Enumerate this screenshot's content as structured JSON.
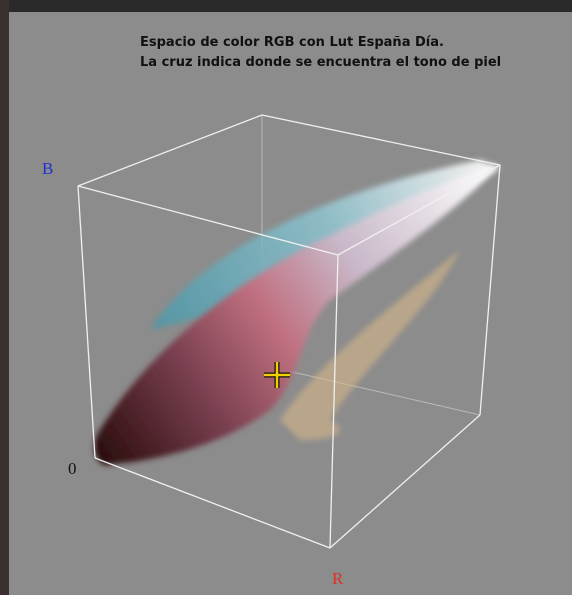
{
  "header": {
    "lines": [
      "Espacio de color RGB con Lut España Día.",
      "La cruz indica donde se encuentra el tono de piel"
    ]
  },
  "axes": {
    "b": "B",
    "r": "R",
    "origin": "0"
  }
}
